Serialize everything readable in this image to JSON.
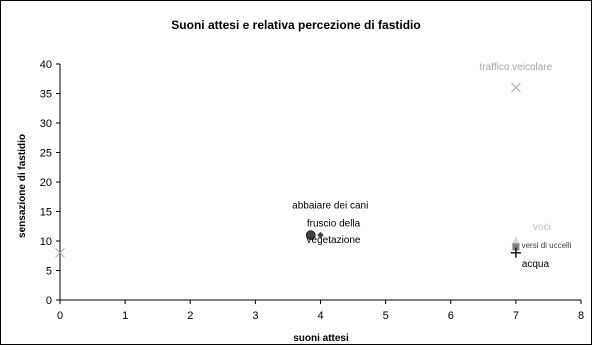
{
  "chart_data": {
    "type": "scatter",
    "title": "Suoni attesi e relativa percezione di fastidio",
    "xlabel": "suoni attesi",
    "ylabel": "sensazione di fastidio",
    "xlim": [
      0,
      8
    ],
    "ylim": [
      0,
      40
    ],
    "x_ticks": [
      "0",
      "1",
      "2",
      "3",
      "4",
      "5",
      "6",
      "7",
      "8"
    ],
    "y_ticks": [
      "0",
      "5",
      "10",
      "15",
      "20",
      "25",
      "30",
      "35",
      "40"
    ],
    "grid": false,
    "points": [
      {
        "x": 7,
        "y": 36,
        "marker": "x",
        "color": "#a6a6a6"
      },
      {
        "x": 0,
        "y": 8,
        "marker": "x",
        "color": "#a6a6a6"
      },
      {
        "x": 3.85,
        "y": 11,
        "marker": "circle",
        "color": "#404040"
      },
      {
        "x": 4,
        "y": 11,
        "marker": "diamond",
        "color": "#404040"
      },
      {
        "x": 7,
        "y": 10,
        "marker": "triangle",
        "color": "#d9d9d9"
      },
      {
        "x": 7,
        "y": 9,
        "marker": "square",
        "color": "#808080"
      },
      {
        "x": 7,
        "y": 8,
        "marker": "plus",
        "color": "#000000"
      }
    ],
    "annotations": [
      {
        "text": "traffico veicolare",
        "x": 7,
        "y": 39,
        "color": "#a6a6a6",
        "size": "normal",
        "anchor": "middle"
      },
      {
        "text": "abbaiare dei cani",
        "x": 4.15,
        "y": 15.5,
        "color": "#000000",
        "size": "normal",
        "anchor": "middle"
      },
      {
        "text": "fruscio della",
        "x": 4.2,
        "y": 12.5,
        "color": "#000000",
        "size": "normal",
        "anchor": "middle"
      },
      {
        "text": "vegetazione",
        "x": 4.2,
        "y": 9.7,
        "color": "#000000",
        "size": "normal",
        "anchor": "middle"
      },
      {
        "text": "voci",
        "x": 7.4,
        "y": 11.9,
        "color": "#bfbfbf",
        "size": "normal",
        "anchor": "middle"
      },
      {
        "text": "versi di uccelli",
        "x": 7.47,
        "y": 8.85,
        "color": "#404040",
        "size": "small",
        "anchor": "middle"
      },
      {
        "text": "acqua",
        "x": 7.3,
        "y": 5.6,
        "color": "#000000",
        "size": "normal",
        "anchor": "middle"
      }
    ]
  }
}
